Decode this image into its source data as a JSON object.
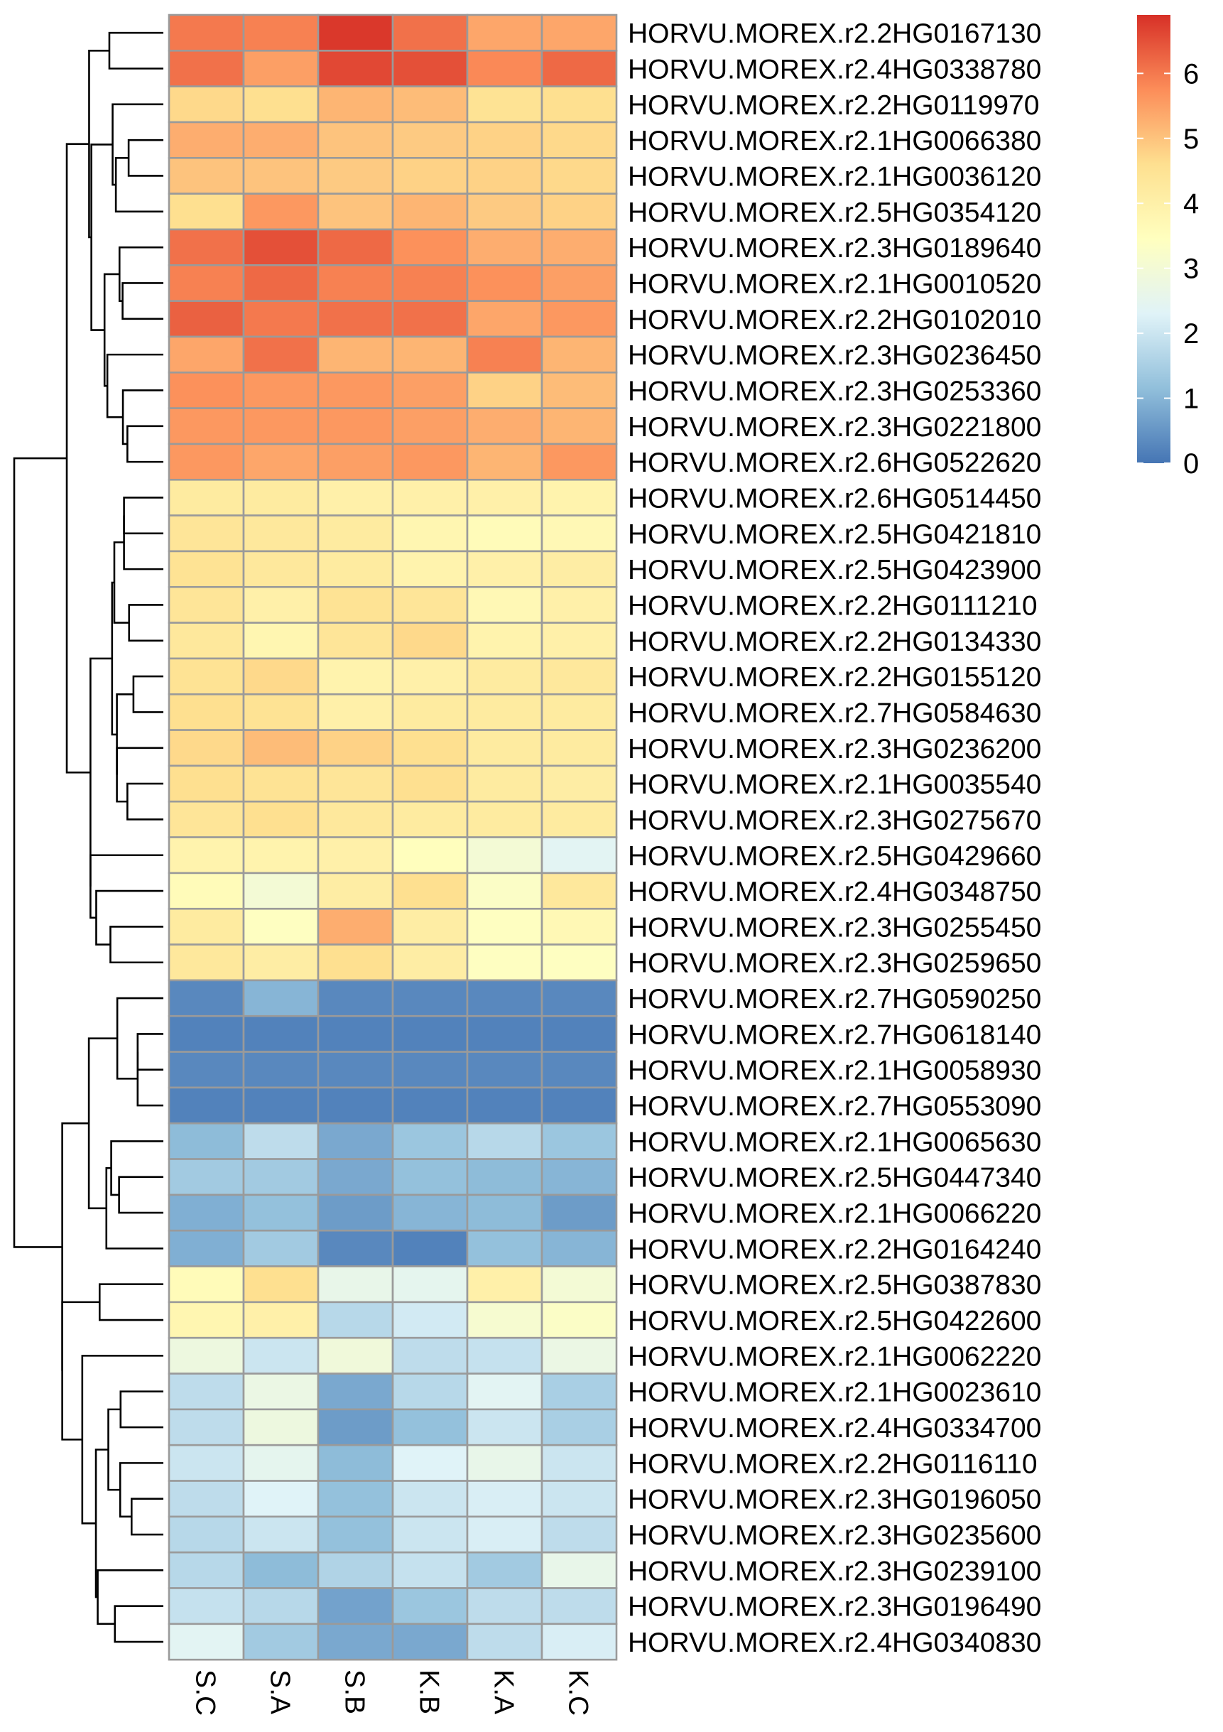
{
  "chart_data": {
    "type": "heatmap",
    "title": "",
    "xlabel": "",
    "ylabel": "",
    "columns": [
      "S.C",
      "S.A",
      "S.B",
      "K.B",
      "K.A",
      "K.C"
    ],
    "rows": [
      "HORVU.MOREX.r2.2HG0167130",
      "HORVU.MOREX.r2.4HG0338780",
      "HORVU.MOREX.r2.2HG0119970",
      "HORVU.MOREX.r2.1HG0066380",
      "HORVU.MOREX.r2.1HG0036120",
      "HORVU.MOREX.r2.5HG0354120",
      "HORVU.MOREX.r2.3HG0189640",
      "HORVU.MOREX.r2.1HG0010520",
      "HORVU.MOREX.r2.2HG0102010",
      "HORVU.MOREX.r2.3HG0236450",
      "HORVU.MOREX.r2.3HG0253360",
      "HORVU.MOREX.r2.3HG0221800",
      "HORVU.MOREX.r2.6HG0522620",
      "HORVU.MOREX.r2.6HG0514450",
      "HORVU.MOREX.r2.5HG0421810",
      "HORVU.MOREX.r2.5HG0423900",
      "HORVU.MOREX.r2.2HG0111210",
      "HORVU.MOREX.r2.2HG0134330",
      "HORVU.MOREX.r2.2HG0155120",
      "HORVU.MOREX.r2.7HG0584630",
      "HORVU.MOREX.r2.3HG0236200",
      "HORVU.MOREX.r2.1HG0035540",
      "HORVU.MOREX.r2.3HG0275670",
      "HORVU.MOREX.r2.5HG0429660",
      "HORVU.MOREX.r2.4HG0348750",
      "HORVU.MOREX.r2.3HG0255450",
      "HORVU.MOREX.r2.3HG0259650",
      "HORVU.MOREX.r2.7HG0590250",
      "HORVU.MOREX.r2.7HG0618140",
      "HORVU.MOREX.r2.1HG0058930",
      "HORVU.MOREX.r2.7HG0553090",
      "HORVU.MOREX.r2.1HG0065630",
      "HORVU.MOREX.r2.5HG0447340",
      "HORVU.MOREX.r2.1HG0066220",
      "HORVU.MOREX.r2.2HG0164240",
      "HORVU.MOREX.r2.5HG0387830",
      "HORVU.MOREX.r2.5HG0422600",
      "HORVU.MOREX.r2.1HG0062220",
      "HORVU.MOREX.r2.1HG0023610",
      "HORVU.MOREX.r2.4HG0334700",
      "HORVU.MOREX.r2.2HG0116110",
      "HORVU.MOREX.r2.3HG0196050",
      "HORVU.MOREX.r2.3HG0235600",
      "HORVU.MOREX.r2.3HG0239100",
      "HORVU.MOREX.r2.3HG0196490",
      "HORVU.MOREX.r2.4HG0340830"
    ],
    "values": [
      [
        6.0,
        5.9,
        6.8,
        6.1,
        5.4,
        5.4
      ],
      [
        6.1,
        5.5,
        6.6,
        6.5,
        5.8,
        6.2
      ],
      [
        4.7,
        4.6,
        5.2,
        5.1,
        4.5,
        4.6
      ],
      [
        5.3,
        5.3,
        5.0,
        4.9,
        4.8,
        4.7
      ],
      [
        5.0,
        5.0,
        4.9,
        4.8,
        4.8,
        4.7
      ],
      [
        4.6,
        5.6,
        5.0,
        5.2,
        4.9,
        4.8
      ],
      [
        6.1,
        6.5,
        6.2,
        5.7,
        5.3,
        5.3
      ],
      [
        5.9,
        6.2,
        5.9,
        5.9,
        5.7,
        5.5
      ],
      [
        6.3,
        6.0,
        6.1,
        6.1,
        5.4,
        5.6
      ],
      [
        5.4,
        6.1,
        5.2,
        5.2,
        5.9,
        5.2
      ],
      [
        5.7,
        5.6,
        5.6,
        5.5,
        4.8,
        5.1
      ],
      [
        5.6,
        5.6,
        5.6,
        5.5,
        5.3,
        5.2
      ],
      [
        5.6,
        5.4,
        5.5,
        5.6,
        5.2,
        5.6
      ],
      [
        4.2,
        4.2,
        4.0,
        4.0,
        4.0,
        3.9
      ],
      [
        4.4,
        4.3,
        4.2,
        3.8,
        3.6,
        3.7
      ],
      [
        4.5,
        4.3,
        4.2,
        3.9,
        4.0,
        4.1
      ],
      [
        4.4,
        4.0,
        4.5,
        4.4,
        3.7,
        4.0
      ],
      [
        4.3,
        3.8,
        4.4,
        4.7,
        3.9,
        4.0
      ],
      [
        4.5,
        4.7,
        3.9,
        4.0,
        4.2,
        4.3
      ],
      [
        4.6,
        4.5,
        4.0,
        4.2,
        4.2,
        4.2
      ],
      [
        4.7,
        5.1,
        4.8,
        4.6,
        4.2,
        4.2
      ],
      [
        4.6,
        4.5,
        4.4,
        4.6,
        4.2,
        4.1
      ],
      [
        4.4,
        4.6,
        4.3,
        4.2,
        4.2,
        4.2
      ],
      [
        3.9,
        3.9,
        4.0,
        3.5,
        3.0,
        2.4
      ],
      [
        3.6,
        3.0,
        4.1,
        4.6,
        3.3,
        4.3
      ],
      [
        4.2,
        3.4,
        5.3,
        4.1,
        3.4,
        3.7
      ],
      [
        4.3,
        4.1,
        4.6,
        4.1,
        3.4,
        3.4
      ],
      [
        0.3,
        1.0,
        0.3,
        0.3,
        0.3,
        0.3
      ],
      [
        0.2,
        0.2,
        0.2,
        0.2,
        0.2,
        0.2
      ],
      [
        0.3,
        0.3,
        0.3,
        0.3,
        0.3,
        0.3
      ],
      [
        0.2,
        0.2,
        0.2,
        0.2,
        0.2,
        0.2
      ],
      [
        1.1,
        1.8,
        0.8,
        1.3,
        1.7,
        1.3
      ],
      [
        1.4,
        1.4,
        0.8,
        1.2,
        1.1,
        1.0
      ],
      [
        0.9,
        1.2,
        0.6,
        1.0,
        1.1,
        0.6
      ],
      [
        0.9,
        1.4,
        0.3,
        0.2,
        1.2,
        1.0
      ],
      [
        3.6,
        4.6,
        2.6,
        2.5,
        4.0,
        3.0
      ],
      [
        3.8,
        4.0,
        1.7,
        2.1,
        3.1,
        3.3
      ],
      [
        2.8,
        2.0,
        2.9,
        1.8,
        1.9,
        2.7
      ],
      [
        1.8,
        2.7,
        0.8,
        1.7,
        2.4,
        1.5
      ],
      [
        1.8,
        2.8,
        0.6,
        1.2,
        2.0,
        1.5
      ],
      [
        2.0,
        2.5,
        1.1,
        2.3,
        2.6,
        2.0
      ],
      [
        1.8,
        2.3,
        1.2,
        2.0,
        2.2,
        2.0
      ],
      [
        1.7,
        2.0,
        1.2,
        2.0,
        2.2,
        1.8
      ],
      [
        1.7,
        1.1,
        1.6,
        1.9,
        1.4,
        2.6
      ],
      [
        1.9,
        1.7,
        0.7,
        1.3,
        1.8,
        1.8
      ],
      [
        2.4,
        1.4,
        0.8,
        0.8,
        1.8,
        2.2
      ]
    ],
    "legend": {
      "position": "top-right",
      "ticks": [
        0,
        1,
        2,
        3,
        4,
        5,
        6
      ],
      "range": [
        0,
        6.9
      ],
      "colors": [
        "#4575b4",
        "#91bfdb",
        "#e0f3f8",
        "#ffffbf",
        "#fee090",
        "#fc8d59",
        "#d73027"
      ]
    },
    "row_dendrogram": "left",
    "grid": true
  }
}
